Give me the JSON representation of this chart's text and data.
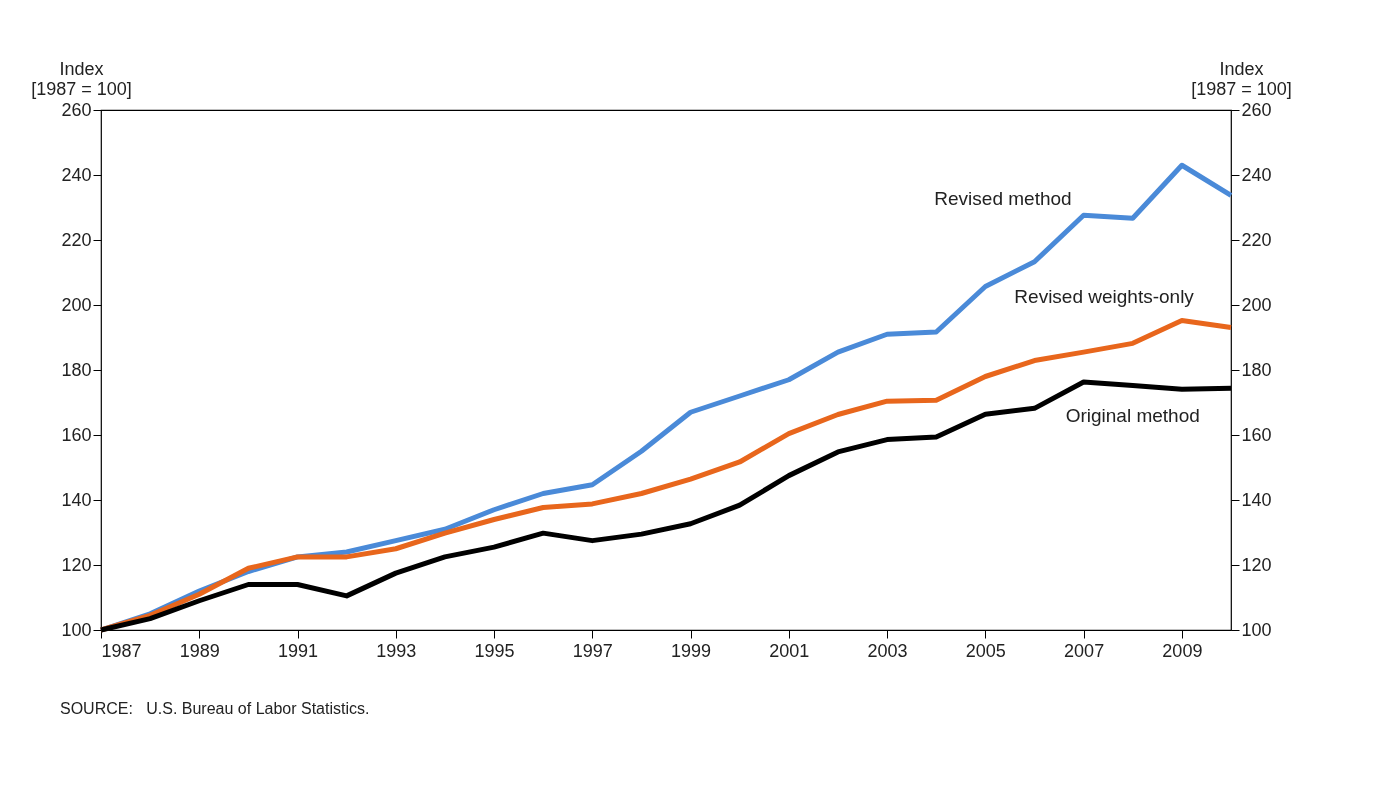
{
  "chart_data": {
    "type": "line",
    "ylabel": "Index\n[1987 = 100]",
    "y2label": "Index\n[1987 = 100]",
    "x": [
      1987,
      1988,
      1989,
      1990,
      1991,
      1992,
      1993,
      1994,
      1995,
      1996,
      1997,
      1998,
      1999,
      2000,
      2001,
      2002,
      2003,
      2004,
      2005,
      2006,
      2007,
      2008,
      2009,
      2010
    ],
    "series": [
      {
        "name": "Revised method",
        "color": "#4a8ad8",
        "values": [
          100,
          105,
          112,
          118,
          122.5,
          124,
          127.5,
          131,
          137,
          142,
          144.7,
          155,
          167,
          172,
          177,
          185.5,
          191,
          191.7,
          205.7,
          213.3,
          227.6,
          226.7,
          243,
          233.7
        ]
      },
      {
        "name": "Revised weights-only",
        "color": "#e8661c",
        "values": [
          100,
          104.5,
          111,
          119,
          122.5,
          122.5,
          125,
          129.8,
          134,
          137.7,
          138.8,
          142,
          146.4,
          151.7,
          160.4,
          166.3,
          170.4,
          170.7,
          178,
          182.9,
          185.5,
          188.2,
          195.2,
          193.1
        ]
      },
      {
        "name": "Original method",
        "color": "#000000",
        "values": [
          100,
          103.5,
          109,
          114,
          114,
          110.5,
          117.5,
          122.5,
          125.5,
          129.8,
          127.5,
          129.5,
          132.7,
          138.4,
          147.5,
          154.8,
          158.6,
          159.4,
          166.4,
          168.2,
          176.3,
          175.2,
          174.1,
          174.4
        ]
      }
    ],
    "xlim": [
      1987,
      2010
    ],
    "xticks": [
      1987,
      1989,
      1991,
      1993,
      1995,
      1997,
      1999,
      2001,
      2003,
      2005,
      2007,
      2009
    ],
    "ylim": [
      100,
      260
    ],
    "yticks": [
      100,
      120,
      140,
      160,
      180,
      200,
      220,
      240,
      260
    ],
    "y2lim": [
      100,
      260
    ],
    "y2ticks": [
      100,
      120,
      140,
      160,
      180,
      200,
      220,
      240,
      260
    ],
    "grid": false,
    "legend": false,
    "annotations": [
      "SOURCE:   U.S. Bureau of Labor Statistics."
    ]
  }
}
